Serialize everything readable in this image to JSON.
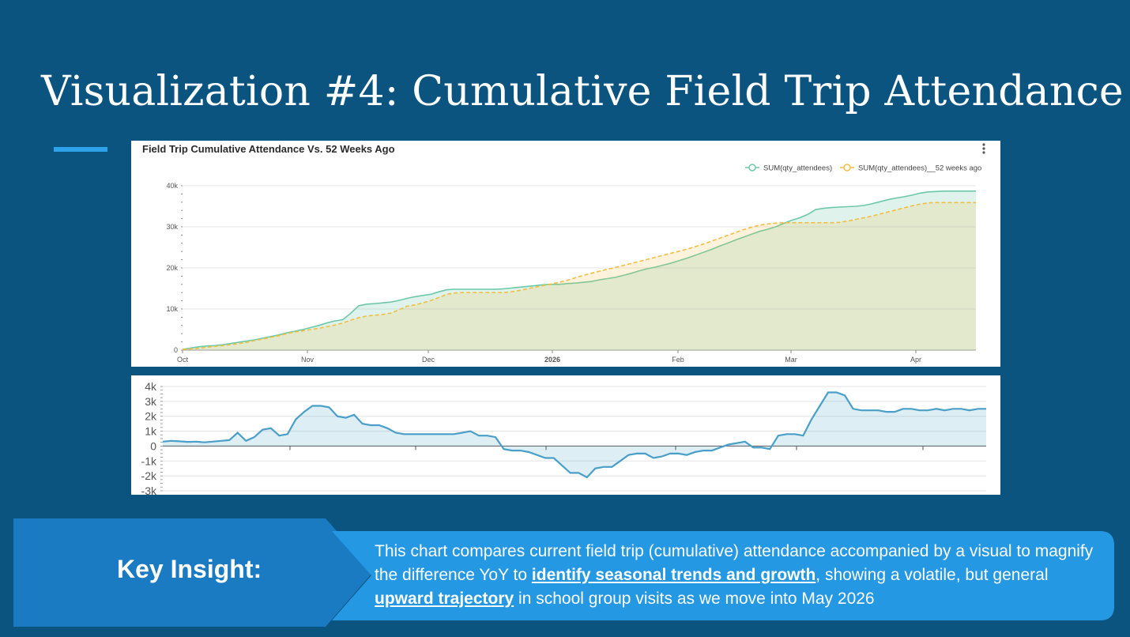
{
  "slide": {
    "title": "Visualization #4: Cumulative Field Trip Attendance"
  },
  "chart_data": [
    {
      "type": "area",
      "title": "Field Trip Cumulative Attendance Vs. 52 Weeks Ago",
      "legend_position": "top-right",
      "grid": true,
      "x_tick_labels": [
        "Oct",
        "Nov",
        "Dec",
        "2026",
        "Feb",
        "Mar",
        "Apr"
      ],
      "y_tick_labels": [
        "0",
        "10k",
        "20k",
        "30k",
        "40k"
      ],
      "ylim": [
        0,
        40000
      ],
      "x": [
        0,
        2,
        4,
        6,
        8,
        10,
        12,
        14,
        16,
        18,
        20,
        22,
        24,
        26,
        28,
        30,
        32,
        34,
        36,
        38,
        40,
        42,
        44,
        46,
        48,
        50,
        52,
        54,
        56,
        58,
        60,
        62,
        64,
        66,
        68,
        70,
        72,
        74,
        76,
        78,
        80,
        82,
        84,
        86,
        88,
        90,
        92,
        94,
        96,
        98,
        100,
        102,
        104,
        106,
        108,
        110,
        112,
        114,
        116,
        118,
        120,
        122,
        124,
        126,
        128,
        130,
        132,
        134,
        136,
        138,
        140,
        142,
        144,
        146,
        148,
        150,
        152,
        154,
        156,
        158,
        160,
        162,
        164,
        166,
        168,
        170,
        172,
        174,
        176,
        178,
        180,
        182,
        184,
        186,
        188,
        190,
        192,
        194,
        196,
        198
      ],
      "series": [
        {
          "name": "SUM(qty_attendees)",
          "color": "#6cc9a8",
          "values": [
            200,
            500,
            800,
            1000,
            1100,
            1300,
            1600,
            1900,
            2200,
            2500,
            2900,
            3300,
            3700,
            4200,
            4600,
            5000,
            5500,
            6000,
            6600,
            7100,
            7400,
            9000,
            10800,
            11200,
            11300,
            11500,
            11700,
            12100,
            12600,
            13000,
            13300,
            13600,
            14200,
            14700,
            14800,
            14800,
            14800,
            14800,
            14800,
            14800,
            14900,
            15100,
            15300,
            15500,
            15700,
            15900,
            16000,
            16000,
            16200,
            16300,
            16500,
            16700,
            17100,
            17400,
            17700,
            18200,
            18700,
            19300,
            19800,
            20200,
            20700,
            21200,
            21800,
            22400,
            23100,
            23800,
            24500,
            25300,
            26000,
            26800,
            27500,
            28200,
            28900,
            29400,
            30000,
            30800,
            31600,
            32200,
            33000,
            34200,
            34500,
            34700,
            34800,
            34900,
            35000,
            35200,
            35600,
            36100,
            36600,
            37000,
            37300,
            37700,
            38200,
            38500,
            38600,
            38700,
            38700,
            38700,
            38700,
            38700
          ]
        },
        {
          "name": "SUM(qty_attendees)__52 weeks ago",
          "color": "#f2be42",
          "values": [
            150,
            300,
            450,
            700,
            900,
            1100,
            1300,
            1600,
            1900,
            2300,
            2700,
            3100,
            3500,
            4000,
            4400,
            4700,
            5000,
            5300,
            5700,
            6100,
            6600,
            7300,
            7900,
            8300,
            8500,
            8700,
            9000,
            9800,
            10700,
            11000,
            11500,
            12100,
            12800,
            13600,
            13900,
            14000,
            14000,
            14000,
            14000,
            14000,
            14000,
            14200,
            14500,
            14900,
            15300,
            15700,
            16100,
            16500,
            17000,
            17600,
            18200,
            18700,
            19200,
            19700,
            20100,
            20600,
            21100,
            21600,
            22100,
            22600,
            23100,
            23600,
            24100,
            24600,
            25200,
            25800,
            26500,
            27200,
            27900,
            28600,
            29300,
            29900,
            30400,
            30700,
            30900,
            31000,
            31000,
            31000,
            31000,
            31000,
            31000,
            31000,
            31100,
            31400,
            31800,
            32200,
            32600,
            33100,
            33600,
            34100,
            34600,
            35100,
            35500,
            35800,
            35900,
            35900,
            35900,
            35900,
            35900,
            35900
          ]
        }
      ]
    },
    {
      "type": "area",
      "title": "",
      "grid": true,
      "y_tick_labels": [
        "4k",
        "3k",
        "2k",
        "1k",
        "0",
        "-1k",
        "-2k",
        "-3k"
      ],
      "ylim": [
        -3000,
        4000
      ],
      "x": [
        0,
        6,
        12,
        18,
        24,
        30,
        36,
        42,
        48,
        54,
        60,
        66,
        72,
        78,
        84,
        90,
        96,
        102,
        108,
        114,
        120,
        126,
        132,
        138,
        144,
        150,
        156,
        162,
        168,
        174,
        180,
        186,
        192,
        198,
        204,
        210,
        216,
        222,
        228,
        234,
        240,
        246,
        252,
        258,
        264,
        270,
        276,
        282,
        288,
        294,
        300,
        306,
        312,
        318,
        324,
        330,
        336,
        342,
        348,
        354,
        360,
        366,
        372,
        378,
        384,
        390,
        396,
        402,
        408,
        414,
        420,
        426,
        432,
        438,
        444,
        450,
        456,
        462,
        468,
        474,
        480,
        486,
        492,
        498,
        504,
        510,
        516,
        522,
        528,
        534,
        540,
        546,
        552,
        558,
        564,
        570,
        576,
        582,
        588,
        594
      ],
      "series": [
        {
          "name": "",
          "color": "#4a9fc8",
          "values": [
            300,
            350,
            320,
            280,
            300,
            250,
            300,
            350,
            400,
            900,
            350,
            600,
            1100,
            1200,
            700,
            800,
            1800,
            2300,
            2700,
            2700,
            2600,
            2000,
            1900,
            2100,
            1500,
            1400,
            1400,
            1200,
            900,
            800,
            800,
            800,
            800,
            800,
            800,
            800,
            900,
            1000,
            700,
            700,
            600,
            -200,
            -300,
            -300,
            -400,
            -600,
            -800,
            -800,
            -1300,
            -1800,
            -1800,
            -2100,
            -1500,
            -1400,
            -1400,
            -1000,
            -600,
            -500,
            -500,
            -800,
            -700,
            -500,
            -500,
            -600,
            -400,
            -300,
            -300,
            -100,
            100,
            200,
            300,
            -100,
            -100,
            -200,
            700,
            800,
            800,
            700,
            1800,
            2700,
            3600,
            3600,
            3400,
            2500,
            2400,
            2400,
            2400,
            2300,
            2300,
            2500,
            2500,
            2400,
            2400,
            2500,
            2400,
            2500,
            2500,
            2400,
            2500,
            2500
          ]
        }
      ]
    }
  ],
  "insight": {
    "label": "Key Insight:",
    "text_part1": "This chart compares current field trip (cumulative) attendance accompanied by a visual to magnify the difference YoY to ",
    "emphasis1": "identify seasonal trends and growth",
    "text_part2": ", showing a volatile, but general ",
    "emphasis2": "upward trajectory",
    "text_part3": " in school group visits as we move into May 2026"
  }
}
